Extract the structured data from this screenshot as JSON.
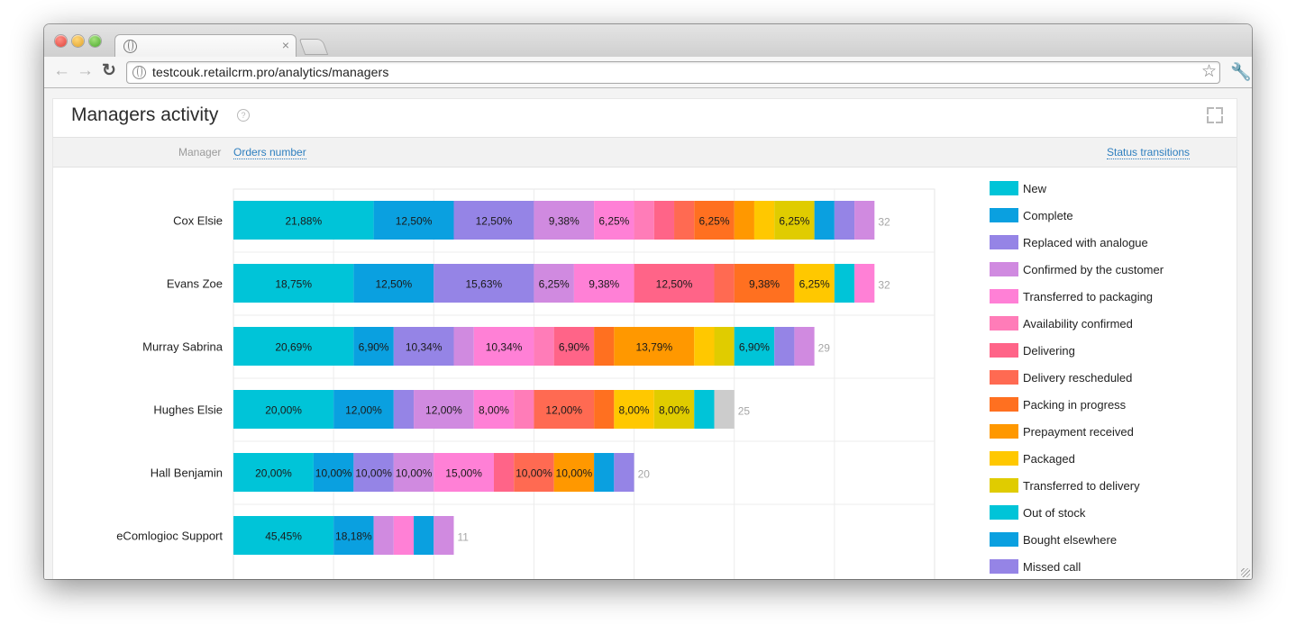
{
  "browser": {
    "url": "testcouk.retailcrm.pro/analytics/managers",
    "tab_close": "×"
  },
  "page": {
    "title": "Managers activity",
    "help": "?",
    "subbar_label": "Manager",
    "link_orders": "Orders number",
    "link_status": "Status transitions"
  },
  "legend": [
    {
      "label": "New",
      "color": "#00c4d8"
    },
    {
      "label": "Complete",
      "color": "#0aa0e0"
    },
    {
      "label": "Replaced with analogue",
      "color": "#9584e6"
    },
    {
      "label": "Confirmed by the customer",
      "color": "#d08ae0"
    },
    {
      "label": "Transferred to packaging",
      "color": "#ff80d6"
    },
    {
      "label": "Availability confirmed",
      "color": "#ff7cb8"
    },
    {
      "label": "Delivering",
      "color": "#ff6488"
    },
    {
      "label": "Delivery rescheduled",
      "color": "#ff6a52"
    },
    {
      "label": "Packing in progress",
      "color": "#ff7020"
    },
    {
      "label": "Prepayment received",
      "color": "#ff9800"
    },
    {
      "label": "Packaged",
      "color": "#ffc800"
    },
    {
      "label": "Transferred to delivery",
      "color": "#e0cc00"
    },
    {
      "label": "Out of stock",
      "color": "#00c4d8"
    },
    {
      "label": "Bought elsewhere",
      "color": "#0aa0e0"
    },
    {
      "label": "Missed call",
      "color": "#9584e6"
    }
  ],
  "chart_data": {
    "type": "bar",
    "orientation": "horizontal",
    "stacked": true,
    "categories": [
      "Cox Elsie",
      "Evans Zoe",
      "Murray Sabrina",
      "Hughes Elsie",
      "Hall Benjamin",
      "eComlogioc Support"
    ],
    "totals": [
      32,
      32,
      29,
      25,
      20,
      11
    ],
    "segments": [
      [
        {
          "value": 7,
          "color": "#00c4d8",
          "label": "21,88%"
        },
        {
          "value": 4,
          "color": "#0aa0e0",
          "label": "12,50%"
        },
        {
          "value": 4,
          "color": "#9584e6",
          "label": "12,50%"
        },
        {
          "value": 3,
          "color": "#d08ae0",
          "label": "9,38%"
        },
        {
          "value": 2,
          "color": "#ff80d6",
          "label": "6,25%"
        },
        {
          "value": 1,
          "color": "#ff7cb8",
          "label": ""
        },
        {
          "value": 1,
          "color": "#ff6488",
          "label": ""
        },
        {
          "value": 1,
          "color": "#ff6a52",
          "label": ""
        },
        {
          "value": 2,
          "color": "#ff7020",
          "label": "6,25%"
        },
        {
          "value": 1,
          "color": "#ff9800",
          "label": ""
        },
        {
          "value": 1,
          "color": "#ffc800",
          "label": ""
        },
        {
          "value": 2,
          "color": "#e0cc00",
          "label": "6,25%"
        },
        {
          "value": 1,
          "color": "#0aa0e0",
          "label": ""
        },
        {
          "value": 1,
          "color": "#9584e6",
          "label": ""
        },
        {
          "value": 1,
          "color": "#d08ae0",
          "label": ""
        }
      ],
      [
        {
          "value": 6,
          "color": "#00c4d8",
          "label": "18,75%"
        },
        {
          "value": 4,
          "color": "#0aa0e0",
          "label": "12,50%"
        },
        {
          "value": 5,
          "color": "#9584e6",
          "label": "15,63%"
        },
        {
          "value": 2,
          "color": "#d08ae0",
          "label": "6,25%"
        },
        {
          "value": 3,
          "color": "#ff80d6",
          "label": "9,38%"
        },
        {
          "value": 4,
          "color": "#ff6488",
          "label": "12,50%"
        },
        {
          "value": 1,
          "color": "#ff6a52",
          "label": ""
        },
        {
          "value": 3,
          "color": "#ff7020",
          "label": "9,38%"
        },
        {
          "value": 2,
          "color": "#ffc800",
          "label": "6,25%"
        },
        {
          "value": 1,
          "color": "#00c4d8",
          "label": ""
        },
        {
          "value": 1,
          "color": "#ff80d6",
          "label": ""
        }
      ],
      [
        {
          "value": 6,
          "color": "#00c4d8",
          "label": "20,69%"
        },
        {
          "value": 2,
          "color": "#0aa0e0",
          "label": "6,90%"
        },
        {
          "value": 3,
          "color": "#9584e6",
          "label": "10,34%"
        },
        {
          "value": 1,
          "color": "#d08ae0",
          "label": ""
        },
        {
          "value": 3,
          "color": "#ff80d6",
          "label": "10,34%"
        },
        {
          "value": 1,
          "color": "#ff7cb8",
          "label": ""
        },
        {
          "value": 2,
          "color": "#ff6488",
          "label": "6,90%"
        },
        {
          "value": 1,
          "color": "#ff7020",
          "label": ""
        },
        {
          "value": 4,
          "color": "#ff9800",
          "label": "13,79%"
        },
        {
          "value": 1,
          "color": "#ffc800",
          "label": ""
        },
        {
          "value": 1,
          "color": "#e0cc00",
          "label": ""
        },
        {
          "value": 2,
          "color": "#00c4d8",
          "label": "6,90%"
        },
        {
          "value": 1,
          "color": "#9584e6",
          "label": ""
        },
        {
          "value": 1,
          "color": "#d08ae0",
          "label": ""
        }
      ],
      [
        {
          "value": 5,
          "color": "#00c4d8",
          "label": "20,00%"
        },
        {
          "value": 3,
          "color": "#0aa0e0",
          "label": "12,00%"
        },
        {
          "value": 1,
          "color": "#9584e6",
          "label": ""
        },
        {
          "value": 3,
          "color": "#d08ae0",
          "label": "12,00%"
        },
        {
          "value": 2,
          "color": "#ff80d6",
          "label": "8,00%"
        },
        {
          "value": 1,
          "color": "#ff7cb8",
          "label": ""
        },
        {
          "value": 3,
          "color": "#ff6a52",
          "label": "12,00%"
        },
        {
          "value": 1,
          "color": "#ff7020",
          "label": ""
        },
        {
          "value": 2,
          "color": "#ffc800",
          "label": "8,00%"
        },
        {
          "value": 2,
          "color": "#e0cc00",
          "label": "8,00%"
        },
        {
          "value": 1,
          "color": "#00c4d8",
          "label": ""
        },
        {
          "value": 1,
          "color": "#cccccc",
          "label": ""
        }
      ],
      [
        {
          "value": 4,
          "color": "#00c4d8",
          "label": "20,00%"
        },
        {
          "value": 2,
          "color": "#0aa0e0",
          "label": "10,00%"
        },
        {
          "value": 2,
          "color": "#9584e6",
          "label": "10,00%"
        },
        {
          "value": 2,
          "color": "#d08ae0",
          "label": "10,00%"
        },
        {
          "value": 3,
          "color": "#ff80d6",
          "label": "15,00%"
        },
        {
          "value": 1,
          "color": "#ff6488",
          "label": ""
        },
        {
          "value": 2,
          "color": "#ff6a52",
          "label": "10,00%"
        },
        {
          "value": 2,
          "color": "#ff9800",
          "label": "10,00%"
        },
        {
          "value": 1,
          "color": "#0aa0e0",
          "label": ""
        },
        {
          "value": 1,
          "color": "#9584e6",
          "label": ""
        }
      ],
      [
        {
          "value": 5,
          "color": "#00c4d8",
          "label": "45,45%"
        },
        {
          "value": 2,
          "color": "#0aa0e0",
          "label": "18,18%"
        },
        {
          "value": 1,
          "color": "#d08ae0",
          "label": ""
        },
        {
          "value": 1,
          "color": "#ff80d6",
          "label": ""
        },
        {
          "value": 1,
          "color": "#0aa0e0",
          "label": ""
        },
        {
          "value": 1,
          "color": "#d08ae0",
          "label": ""
        }
      ]
    ],
    "xlim": [
      0,
      35
    ],
    "grid": true
  }
}
